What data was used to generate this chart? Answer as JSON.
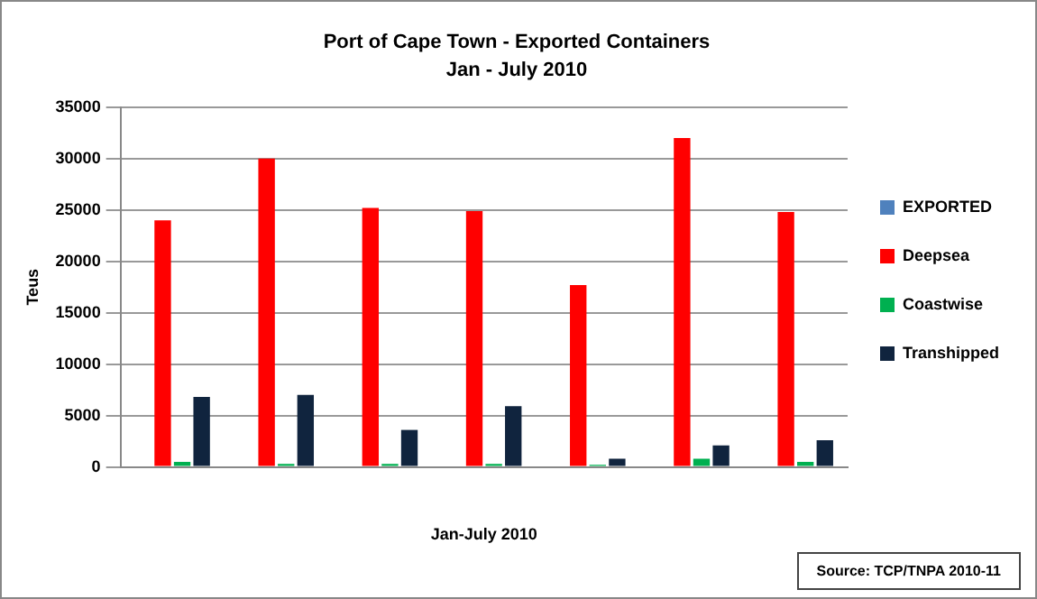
{
  "chart_data": {
    "type": "bar",
    "title": "Port of Cape Town - Exported Containers",
    "subtitle": "Jan - July 2010",
    "xlabel": "Jan-July 2010",
    "ylabel": "Teus",
    "categories": [
      null,
      null,
      null,
      null,
      null,
      null,
      null
    ],
    "series": [
      {
        "name": "EXPORTED",
        "color": "#4f81bd",
        "values": [
          0,
          0,
          0,
          0,
          0,
          0,
          0
        ]
      },
      {
        "name": "Deepsea",
        "color": "#ff0000",
        "values": [
          24000,
          30000,
          25200,
          24900,
          17700,
          32000,
          24800
        ]
      },
      {
        "name": "Coastwise",
        "color": "#00b050",
        "values": [
          500,
          300,
          300,
          300,
          200,
          800,
          500
        ]
      },
      {
        "name": "Transhipped",
        "color": "#10243e",
        "values": [
          6800,
          7000,
          3600,
          5900,
          800,
          2100,
          2600
        ]
      }
    ],
    "ylim": [
      0,
      35000
    ],
    "yticks": [
      0,
      5000,
      10000,
      15000,
      20000,
      25000,
      30000,
      35000
    ],
    "grid": "y",
    "legend": "right",
    "annotations": [
      "Source: TCP/TNPA 2010-11"
    ]
  }
}
